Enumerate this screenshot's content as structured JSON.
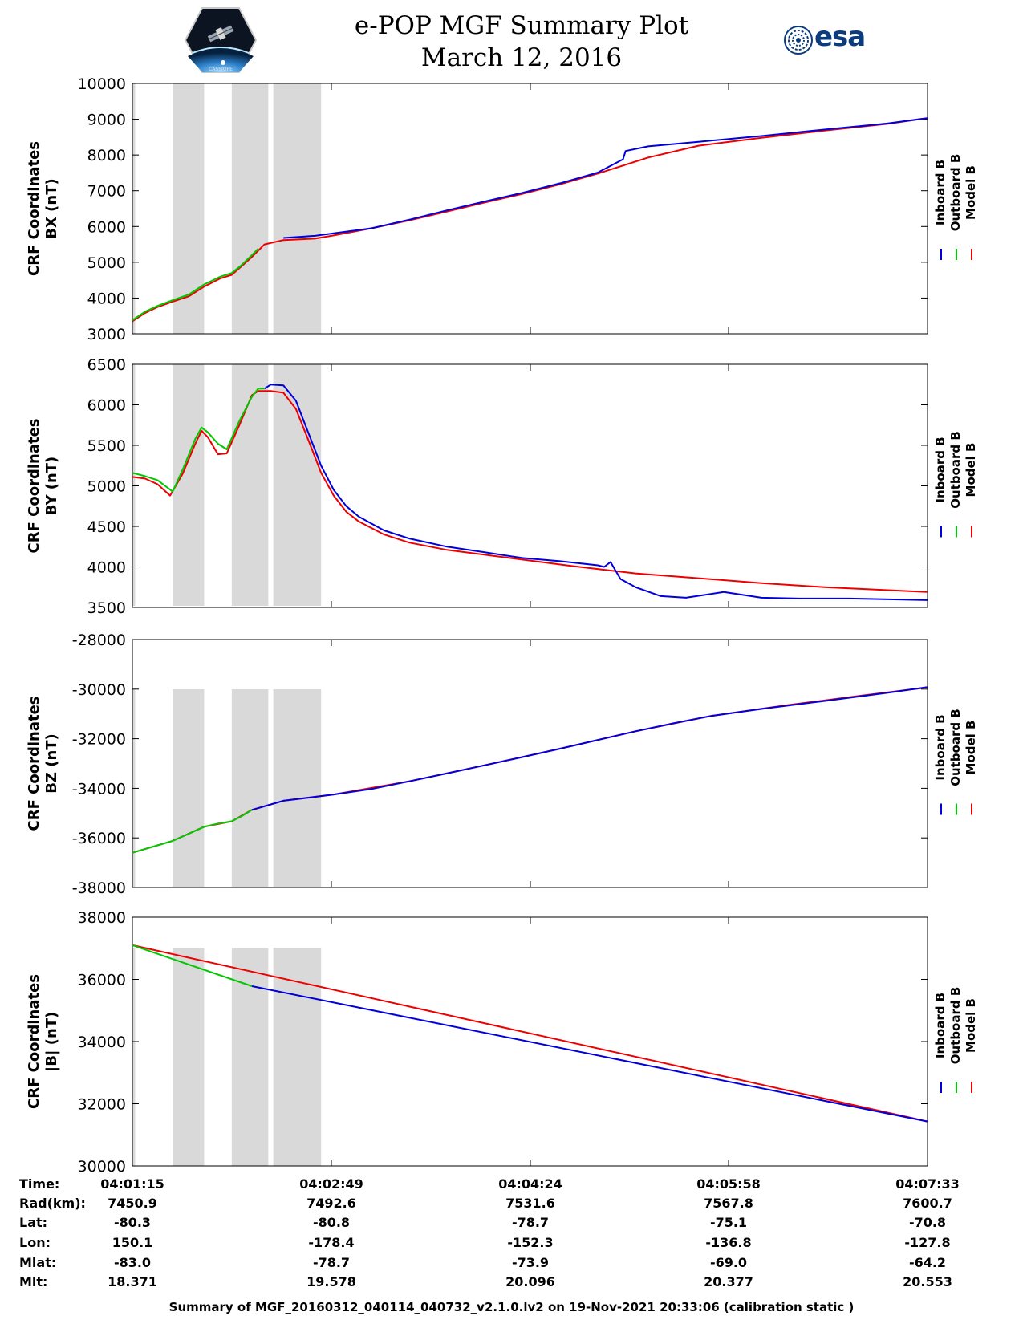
{
  "title_line1": "e-POP MGF Summary Plot",
  "title_line2": "March 12, 2016",
  "logos": {
    "left": "cassiope-satellite-logo",
    "left_caption": "CASSIOPE",
    "right": "esa"
  },
  "colors": {
    "inboard": "#0000dd",
    "outboard": "#00c800",
    "model": "#ee0000",
    "shade": "#d9d9d9"
  },
  "legend": [
    "Inboard B",
    "Outboard B",
    "Model B"
  ],
  "chart_data": [
    {
      "type": "line",
      "title": "",
      "ylabel": [
        "CRF Coordinates",
        "BX (nT)"
      ],
      "ylim": [
        3000,
        10000
      ],
      "yticks": [
        3000,
        4000,
        5000,
        6000,
        7000,
        8000,
        9000,
        10000
      ],
      "shaded_x": [
        [
          0,
          0.022
        ],
        [
          0.32,
          0.57
        ],
        [
          0.79,
          1.08
        ],
        [
          1.12,
          1.5
        ]
      ],
      "series": [
        {
          "name": "Inboard B",
          "x": [
            1.2,
            1.45,
            1.6,
            1.9,
            2.2,
            2.5,
            2.8,
            3.1,
            3.4,
            3.7,
            3.9,
            3.92,
            4.1,
            4.5,
            5.0,
            5.5,
            6.0,
            6.32
          ],
          "y": [
            5680,
            5740,
            5810,
            5950,
            6190,
            6450,
            6700,
            6940,
            7210,
            7510,
            7880,
            8110,
            8240,
            8370,
            8530,
            8710,
            8880,
            9030
          ]
        },
        {
          "name": "Outboard B",
          "x": [
            0,
            0.1,
            0.2,
            0.32,
            0.45,
            0.57,
            0.7,
            0.79,
            0.86,
            0.95,
            1.0
          ],
          "y": [
            3380,
            3620,
            3780,
            3940,
            4100,
            4380,
            4600,
            4700,
            4900,
            5200,
            5380
          ]
        },
        {
          "name": "Model B",
          "x": [
            0,
            0.1,
            0.2,
            0.32,
            0.45,
            0.57,
            0.7,
            0.79,
            0.86,
            0.95,
            1.05,
            1.2,
            1.45,
            1.6,
            1.9,
            2.2,
            2.5,
            2.8,
            3.1,
            3.4,
            3.7,
            4.1,
            4.5,
            5.0,
            5.5,
            6.0,
            6.32
          ],
          "y": [
            3350,
            3580,
            3750,
            3900,
            4050,
            4320,
            4550,
            4650,
            4870,
            5150,
            5500,
            5620,
            5660,
            5750,
            5950,
            6170,
            6420,
            6670,
            6910,
            7180,
            7480,
            7930,
            8260,
            8480,
            8680,
            8870,
            9030
          ]
        }
      ]
    },
    {
      "type": "line",
      "title": "",
      "ylabel": [
        "CRF Coordinates",
        "BY (nT)"
      ],
      "ylim": [
        3500,
        6500
      ],
      "yticks": [
        3500,
        4000,
        4500,
        5000,
        5500,
        6000,
        6500
      ],
      "shaded_x": [
        [
          0,
          0.022
        ],
        [
          0.32,
          0.57
        ],
        [
          0.79,
          1.08
        ],
        [
          1.12,
          1.5
        ]
      ],
      "series": [
        {
          "name": "Inboard B",
          "x": [
            1.05,
            1.1,
            1.2,
            1.3,
            1.4,
            1.5,
            1.6,
            1.7,
            1.8,
            2.0,
            2.2,
            2.5,
            2.8,
            3.1,
            3.4,
            3.7,
            3.75,
            3.8,
            3.88,
            4.0,
            4.2,
            4.4,
            4.7,
            5.0,
            5.3,
            5.7,
            6.32
          ],
          "y": [
            6200,
            6250,
            6240,
            6050,
            5650,
            5250,
            4950,
            4750,
            4620,
            4450,
            4350,
            4250,
            4180,
            4110,
            4070,
            4020,
            4000,
            4060,
            3850,
            3750,
            3640,
            3620,
            3690,
            3620,
            3610,
            3610,
            3590
          ]
        },
        {
          "name": "Outboard B",
          "x": [
            0,
            0.1,
            0.2,
            0.32,
            0.4,
            0.5,
            0.55,
            0.6,
            0.68,
            0.75,
            0.85,
            0.95,
            1.0,
            1.05
          ],
          "y": [
            5160,
            5120,
            5070,
            4930,
            5200,
            5580,
            5720,
            5660,
            5520,
            5450,
            5800,
            6100,
            6200,
            6200
          ]
        },
        {
          "name": "Model B",
          "x": [
            0,
            0.1,
            0.2,
            0.3,
            0.4,
            0.5,
            0.55,
            0.6,
            0.68,
            0.75,
            0.85,
            0.95,
            1.0,
            1.1,
            1.2,
            1.3,
            1.4,
            1.5,
            1.6,
            1.7,
            1.8,
            2.0,
            2.2,
            2.5,
            3.0,
            3.5,
            4.0,
            4.5,
            5.0,
            5.5,
            6.32
          ],
          "y": [
            5110,
            5090,
            5020,
            4880,
            5150,
            5520,
            5680,
            5600,
            5390,
            5400,
            5750,
            6120,
            6170,
            6170,
            6150,
            5950,
            5560,
            5160,
            4880,
            4680,
            4560,
            4400,
            4300,
            4210,
            4110,
            4010,
            3920,
            3860,
            3800,
            3750,
            3690
          ]
        }
      ]
    },
    {
      "type": "line",
      "title": "",
      "ylabel": [
        "CRF Coordinates",
        "BZ (nT)"
      ],
      "ylim": [
        -38000,
        -28000
      ],
      "yticks": [
        -38000,
        -36000,
        -34000,
        -32000,
        -30000,
        -28000
      ],
      "shaded_x": [
        [
          0,
          0.022
        ],
        [
          0.32,
          0.57
        ],
        [
          0.79,
          1.08
        ],
        [
          1.12,
          1.5
        ]
      ],
      "series": [
        {
          "name": "Inboard B",
          "x": [
            0.95,
            1.1,
            1.2,
            1.4,
            1.6,
            1.9,
            2.2,
            2.5,
            2.8,
            3.1,
            3.4,
            3.7,
            4.0,
            4.3,
            4.6,
            5.0,
            5.5,
            6.0,
            6.32
          ],
          "y": [
            -34870,
            -34650,
            -34500,
            -34380,
            -34250,
            -34030,
            -33720,
            -33400,
            -33070,
            -32740,
            -32400,
            -32050,
            -31700,
            -31380,
            -31080,
            -30800,
            -30480,
            -30150,
            -29920
          ]
        },
        {
          "name": "Outboard B",
          "x": [
            0,
            0.1,
            0.2,
            0.32,
            0.45,
            0.57,
            0.68,
            0.79,
            0.87,
            0.95
          ],
          "y": [
            -36600,
            -36450,
            -36300,
            -36120,
            -35830,
            -35550,
            -35420,
            -35330,
            -35120,
            -34870
          ]
        },
        {
          "name": "Model B",
          "x": [
            0,
            0.32,
            0.57,
            0.79,
            0.95,
            1.2,
            1.6,
            2.2,
            2.8,
            3.4,
            4.0,
            4.6,
            5.2,
            5.8,
            6.32
          ],
          "y": [
            -36600,
            -36120,
            -35550,
            -35330,
            -34870,
            -34500,
            -34250,
            -33720,
            -33070,
            -32400,
            -31700,
            -31080,
            -30650,
            -30260,
            -29930
          ]
        }
      ]
    },
    {
      "type": "line",
      "title": "",
      "ylabel": [
        "CRF Coordinates",
        "|B| (nT)"
      ],
      "ylim": [
        30000,
        38000
      ],
      "yticks": [
        30000,
        32000,
        34000,
        36000,
        38000
      ],
      "shaded_x": [
        [
          0,
          0.022
        ],
        [
          0.32,
          0.57
        ],
        [
          0.79,
          1.08
        ],
        [
          1.12,
          1.5
        ]
      ],
      "series": [
        {
          "name": "Inboard B",
          "x": [
            0.95,
            6.32
          ],
          "y": [
            35780,
            31430
          ]
        },
        {
          "name": "Outboard B",
          "x": [
            0,
            0.95
          ],
          "y": [
            37100,
            35780
          ]
        },
        {
          "name": "Model B",
          "x": [
            0,
            6.32
          ],
          "y": [
            37100,
            31430
          ]
        }
      ]
    }
  ],
  "footer": {
    "labels": [
      "Time:",
      "Rad(km):",
      "Lat:",
      "Lon:",
      "Mlat:",
      "Mlt:"
    ],
    "columns": [
      [
        "04:01:15",
        "7450.9",
        "-80.3",
        "150.1",
        "-83.0",
        "18.371"
      ],
      [
        "04:02:49",
        "7492.6",
        "-80.8",
        "-178.4",
        "-78.7",
        "19.578"
      ],
      [
        "04:04:24",
        "7531.6",
        "-78.7",
        "-152.3",
        "-73.9",
        "20.096"
      ],
      [
        "04:05:58",
        "7567.8",
        "-75.1",
        "-136.8",
        "-69.0",
        "20.377"
      ],
      [
        "04:07:33",
        "7600.7",
        "-70.8",
        "-127.8",
        "-64.2",
        "20.553"
      ]
    ],
    "summary": "Summary of MGF_20160312_040114_040732_v2.1.0.lv2 on 19-Nov-2021 20:33:06 (calibration static )"
  }
}
